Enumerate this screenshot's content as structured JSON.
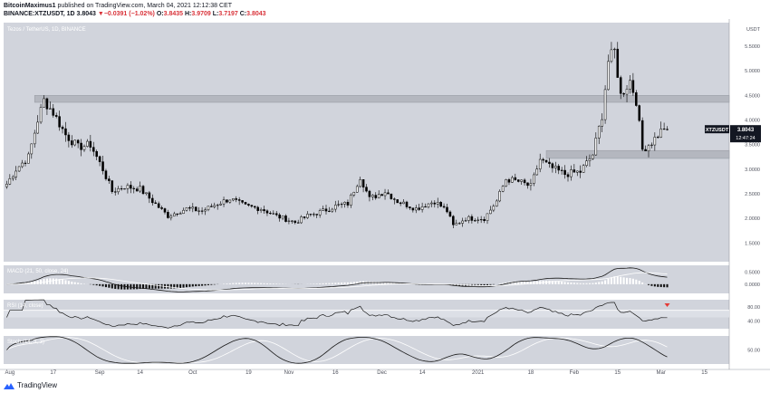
{
  "header": {
    "author": "BitcoinMaximus1",
    "published_text": "published on TradingView.com, March 04, 2021 12:12:38 CET",
    "symbol_line": "BINANCE:XTZUSDT, 1D",
    "last": "3.8043",
    "change_arrow": "▼",
    "change": "−0.0391 (−1.02%)",
    "o_label": "O:",
    "o_value": "3.8435",
    "h_label": "H:",
    "h_value": "3.9709",
    "l_label": "L:",
    "l_value": "3.7197",
    "c_label": "C:",
    "c_value": "3.8043"
  },
  "footer": {
    "brand": "TradingView"
  },
  "colors": {
    "pane_bg": "#d1d4dc",
    "candle": "#000000",
    "zone": "#b4b7bf",
    "line": "#1a1a1a",
    "signal": "#ffffff",
    "rsi_marker": "#e53935",
    "label_bg": "#131722",
    "label_text": "#ffffff"
  },
  "chart_data": {
    "type": "candlestick",
    "title": "Tezos / TetherUS, 1D, BINANCE",
    "currency_label": "USDT",
    "y_ticks": [
      "5.5000",
      "5.0000",
      "4.5000",
      "4.0000",
      "3.5000",
      "3.0000",
      "2.5000",
      "2.0000",
      "1.5000"
    ],
    "ylim": [
      1.12,
      5.98
    ],
    "x_tick_labels": [
      "Aug",
      "17",
      "Sep",
      "14",
      "Oct",
      "19",
      "Nov",
      "16",
      "Dec",
      "14",
      "2021",
      "18",
      "Feb",
      "15",
      "Mar",
      "15"
    ],
    "x_tick_dates": [
      "2020-08-03",
      "2020-08-17",
      "2020-09-01",
      "2020-09-14",
      "2020-10-01",
      "2020-10-19",
      "2020-11-01",
      "2020-11-16",
      "2020-12-01",
      "2020-12-14",
      "2021-01-01",
      "2021-01-18",
      "2021-02-01",
      "2021-02-15",
      "2021-03-01",
      "2021-03-15"
    ],
    "last_price_label": "3.8043",
    "countdown_label": "12:47:24",
    "symbol_tag": "XTZUSDT",
    "anchors": [
      {
        "date": "2020-08-02",
        "close": 2.7
      },
      {
        "date": "2020-08-05",
        "close": 3.0
      },
      {
        "date": "2020-08-09",
        "close": 3.25
      },
      {
        "date": "2020-08-12",
        "close": 4.0
      },
      {
        "date": "2020-08-14",
        "close": 4.4
      },
      {
        "date": "2020-08-17",
        "close": 4.15
      },
      {
        "date": "2020-08-21",
        "close": 3.7
      },
      {
        "date": "2020-08-25",
        "close": 3.45
      },
      {
        "date": "2020-08-29",
        "close": 3.5
      },
      {
        "date": "2020-09-02",
        "close": 3.0
      },
      {
        "date": "2020-09-05",
        "close": 2.55
      },
      {
        "date": "2020-09-09",
        "close": 2.65
      },
      {
        "date": "2020-09-14",
        "close": 2.6
      },
      {
        "date": "2020-09-18",
        "close": 2.35
      },
      {
        "date": "2020-09-23",
        "close": 2.05
      },
      {
        "date": "2020-09-29",
        "close": 2.2
      },
      {
        "date": "2020-10-04",
        "close": 2.15
      },
      {
        "date": "2020-10-09",
        "close": 2.3
      },
      {
        "date": "2020-10-13",
        "close": 2.4
      },
      {
        "date": "2020-10-18",
        "close": 2.25
      },
      {
        "date": "2020-10-23",
        "close": 2.2
      },
      {
        "date": "2020-10-28",
        "close": 2.05
      },
      {
        "date": "2020-11-03",
        "close": 1.92
      },
      {
        "date": "2020-11-07",
        "close": 2.05
      },
      {
        "date": "2020-11-12",
        "close": 2.15
      },
      {
        "date": "2020-11-16",
        "close": 2.25
      },
      {
        "date": "2020-11-20",
        "close": 2.3
      },
      {
        "date": "2020-11-24",
        "close": 2.85
      },
      {
        "date": "2020-11-27",
        "close": 2.4
      },
      {
        "date": "2020-12-02",
        "close": 2.55
      },
      {
        "date": "2020-12-06",
        "close": 2.35
      },
      {
        "date": "2020-12-12",
        "close": 2.2
      },
      {
        "date": "2020-12-18",
        "close": 2.35
      },
      {
        "date": "2020-12-22",
        "close": 2.15
      },
      {
        "date": "2020-12-24",
        "close": 1.85
      },
      {
        "date": "2020-12-28",
        "close": 2.0
      },
      {
        "date": "2021-01-03",
        "close": 2.0
      },
      {
        "date": "2021-01-07",
        "close": 2.35
      },
      {
        "date": "2021-01-10",
        "close": 2.8
      },
      {
        "date": "2021-01-14",
        "close": 2.75
      },
      {
        "date": "2021-01-18",
        "close": 2.65
      },
      {
        "date": "2021-01-21",
        "close": 3.2
      },
      {
        "date": "2021-01-24",
        "close": 3.05
      },
      {
        "date": "2021-01-29",
        "close": 2.9
      },
      {
        "date": "2021-02-03",
        "close": 2.95
      },
      {
        "date": "2021-02-07",
        "close": 3.3
      },
      {
        "date": "2021-02-10",
        "close": 4.1
      },
      {
        "date": "2021-02-12",
        "close": 5.2
      },
      {
        "date": "2021-02-14",
        "close": 5.4
      },
      {
        "date": "2021-02-16",
        "close": 4.5
      },
      {
        "date": "2021-02-19",
        "close": 4.8
      },
      {
        "date": "2021-02-21",
        "close": 4.4
      },
      {
        "date": "2021-02-23",
        "close": 3.4
      },
      {
        "date": "2021-02-26",
        "close": 3.55
      },
      {
        "date": "2021-03-02",
        "close": 3.85
      },
      {
        "date": "2021-03-03",
        "close": 3.8
      }
    ],
    "zones": [
      {
        "name": "resistance",
        "from": 4.36,
        "to": 4.5
      },
      {
        "name": "support",
        "from": 3.22,
        "to": 3.38
      }
    ],
    "macd": {
      "label": "MACD (21, 50, close, 24)",
      "ticks": [
        "0.5000",
        "0.0000"
      ],
      "ylim": [
        -0.38,
        0.78
      ]
    },
    "rsi": {
      "label": "RSI (14, close)",
      "ticks": [
        "80.00",
        "40.00"
      ],
      "levels": [
        70,
        50
      ],
      "ylim": [
        18,
        100
      ]
    },
    "stoch": {
      "label": "Stoch (14, 3, 3)",
      "ticks": [
        "50.00"
      ],
      "ylim": [
        0,
        100
      ]
    }
  }
}
